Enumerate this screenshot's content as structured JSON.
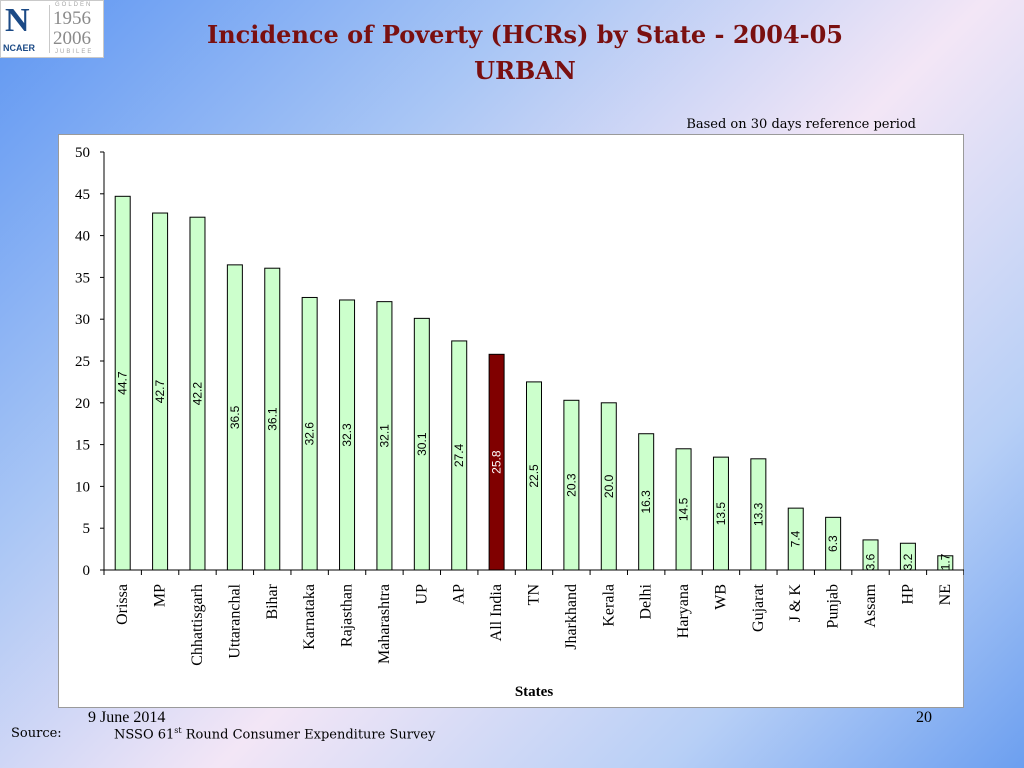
{
  "logo": {
    "mark": "N",
    "word": "NCAER",
    "years_top": "1956",
    "years_bottom": "2006",
    "golden": "GOLDEN",
    "jubilee": "JUBILEE"
  },
  "title_line1": "Incidence of Poverty (HCRs) by State - 2004-05",
  "title_line2": "URBAN",
  "note": "Based on 30 days reference period",
  "footer": {
    "date": "9 June 2014",
    "page": "20"
  },
  "source": {
    "label": "Source:",
    "text_before": "NSSO 61",
    "sup": "st",
    "text_after": " Round Consumer Expenditure Survey"
  },
  "colors": {
    "bar": "#ccffcc",
    "highlight": "#800000",
    "title": "#7a1010"
  },
  "chart_data": {
    "type": "bar",
    "xlabel": "States",
    "ylabel": "",
    "ylim": [
      0,
      50
    ],
    "yticks": [
      0,
      5,
      10,
      15,
      20,
      25,
      30,
      35,
      40,
      45,
      50
    ],
    "categories": [
      "Orissa",
      "MP",
      "Chhattisgarh",
      "Uttaranchal",
      "Bihar",
      "Karnataka",
      "Rajasthan",
      "Maharashtra",
      "UP",
      "AP",
      "All India",
      "TN",
      "Jharkhand",
      "Kerala",
      "Delhi",
      "Haryana",
      "WB",
      "Gujarat",
      "J & K",
      "Punjab",
      "Assam",
      "HP",
      "NE"
    ],
    "values": [
      44.7,
      42.7,
      42.2,
      36.5,
      36.1,
      32.6,
      32.3,
      32.1,
      30.1,
      27.4,
      25.8,
      22.5,
      20.3,
      20.0,
      16.3,
      14.5,
      13.5,
      13.3,
      7.4,
      6.3,
      3.6,
      3.2,
      1.7
    ],
    "value_labels": [
      "44.7",
      "42.7",
      "42.2",
      "36.5",
      "36.1",
      "32.6",
      "32.3",
      "32.1",
      "30.1",
      "27.4",
      "25.8",
      "22.5",
      "20.3",
      "20.0",
      "16.3",
      "14.5",
      "13.5",
      "13.3",
      "7.4",
      "6.3",
      "3.6",
      "3.2",
      "1.7"
    ],
    "highlight": "All India",
    "grid": false,
    "legend": "none"
  }
}
